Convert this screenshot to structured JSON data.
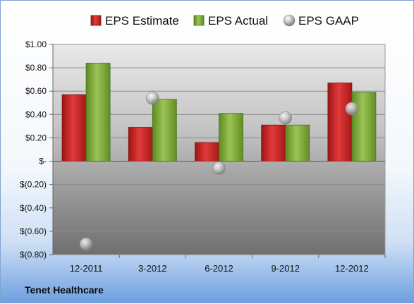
{
  "company": "Tenet Healthcare",
  "chart_data": {
    "type": "bar",
    "categories": [
      "12-2011",
      "3-2012",
      "6-2012",
      "9-2012",
      "12-2012"
    ],
    "series": [
      {
        "name": "EPS Estimate",
        "type": "bar",
        "color": "#d62b2b",
        "values": [
          0.57,
          0.29,
          0.16,
          0.31,
          0.67
        ]
      },
      {
        "name": "EPS Actual",
        "type": "bar",
        "color": "#86b33f",
        "values": [
          0.84,
          0.53,
          0.41,
          0.31,
          0.59
        ]
      },
      {
        "name": "EPS GAAP",
        "type": "scatter",
        "color": "#a9a9a9",
        "values": [
          -0.71,
          0.54,
          -0.06,
          0.37,
          0.45
        ]
      }
    ],
    "yticks": [
      {
        "value": 1.0,
        "label": "$1.00"
      },
      {
        "value": 0.8,
        "label": "$0.80"
      },
      {
        "value": 0.6,
        "label": "$0.60"
      },
      {
        "value": 0.4,
        "label": "$0.40"
      },
      {
        "value": 0.2,
        "label": "$0.20"
      },
      {
        "value": 0.0,
        "label": "$-"
      },
      {
        "value": -0.2,
        "label": "$(0.20)"
      },
      {
        "value": -0.4,
        "label": "$(0.40)"
      },
      {
        "value": -0.6,
        "label": "$(0.60)"
      },
      {
        "value": -0.8,
        "label": "$(0.80)"
      }
    ],
    "ylim": [
      -0.8,
      1.0
    ],
    "legend_position": "top",
    "grid": true
  }
}
